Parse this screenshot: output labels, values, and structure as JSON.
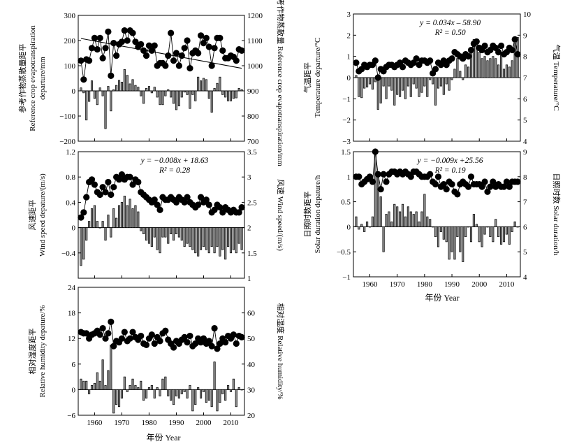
{
  "figure": {
    "xlabel": "年份 Year",
    "years": {
      "start": 1955,
      "end": 2014
    }
  },
  "chart_data": [
    {
      "id": "et0",
      "type": "bar+scatter",
      "ylabel_left": [
        "参考作物蒸散量距平",
        "Reference crop evapotranspiration",
        "departure/mm"
      ],
      "ylabel_right": "参考作物蒸散量 Reference crop evapotranspiration/mm",
      "ylim_left": [
        -200,
        300
      ],
      "ylim_right": [
        700,
        1200
      ],
      "yticks_left": [
        -200,
        -100,
        0,
        100,
        200,
        300
      ],
      "yticks_right": [
        700,
        800,
        900,
        1000,
        1100,
        1200
      ],
      "xticks": [
        1960,
        1970,
        1980,
        1990,
        2000,
        2010
      ],
      "show_xticklabels": false,
      "trend": null,
      "bars": [
        12,
        -8,
        -116,
        -42,
        40,
        -30,
        -55,
        12,
        -20,
        -150,
        18,
        -80,
        5,
        22,
        42,
        35,
        85,
        62,
        28,
        45,
        22,
        15,
        -20,
        -50,
        10,
        18,
        -8,
        15,
        -25,
        -55,
        -55,
        -20,
        5,
        -25,
        -50,
        -75,
        -60,
        -25,
        -5,
        -15,
        -70,
        -15,
        -40,
        55,
        40,
        50,
        45,
        -30,
        -85,
        10,
        30,
        55,
        -15,
        -25,
        -40,
        -40,
        -30,
        -28,
        10,
        5
      ],
      "points": [
        1020,
        945,
        1025,
        1020,
        1070,
        1110,
        1065,
        1110,
        1030,
        1070,
        1135,
        960,
        1090,
        1040,
        1085,
        1095,
        1140,
        1100,
        1140,
        1130,
        1095,
        1075,
        1085,
        1060,
        1040,
        1080,
        1060,
        1080,
        1000,
        1010,
        1010,
        1000,
        1040,
        1130,
        1020,
        1050,
        1000,
        1040,
        1070,
        1100,
        990,
        1050,
        1060,
        1050,
        1120,
        1090,
        1110,
        1075,
        1000,
        1070,
        1110,
        1110,
        1060,
        1030,
        1030,
        1040,
        1035,
        1020,
        1065,
        1060
      ]
    },
    {
      "id": "temp",
      "type": "bar+scatter",
      "ylabel_left": [
        "气温距平",
        "Temperature departure/°C"
      ],
      "ylabel_right": "气温 Temperature/°C",
      "ylim_left": [
        -3,
        3
      ],
      "ylim_right": [
        4,
        10
      ],
      "yticks_left": [
        -3,
        -2,
        -1,
        0,
        1,
        2,
        3
      ],
      "yticks_right": [
        4,
        5,
        6,
        7,
        8,
        9,
        10
      ],
      "xticks": [
        1960,
        1970,
        1980,
        1990,
        2000,
        2010
      ],
      "show_xticklabels": false,
      "trend": {
        "equation": "y = 0.034x – 58.90",
        "r2": "R² = 0.50",
        "slope": 0.034,
        "intercept": -58.9
      },
      "bars": [
        0.1,
        -0.9,
        -0.95,
        -0.5,
        -0.45,
        -0.3,
        -0.55,
        -0.2,
        -1.5,
        -1.2,
        -0.4,
        -1.0,
        -0.4,
        -0.6,
        -1.3,
        -0.8,
        -0.9,
        -0.6,
        -1.0,
        -0.4,
        -0.9,
        -0.3,
        -0.5,
        -0.9,
        -0.7,
        -0.4,
        -0.9,
        -0.1,
        -0.3,
        -1.3,
        -0.5,
        -0.4,
        -0.8,
        -0.3,
        -0.6,
        -0.1,
        0.4,
        0.9,
        0.3,
        -0.1,
        0.6,
        0.5,
        1.3,
        1.8,
        1.7,
        1.2,
        0.9,
        1.0,
        0.8,
        0.9,
        1.0,
        0.9,
        0.6,
        1.1,
        0.4,
        0.6,
        0.5,
        0.8,
        1.6,
        1.9
      ],
      "points": [
        7.7,
        7.3,
        7.4,
        7.6,
        7.5,
        7.6,
        7.6,
        7.8,
        7.0,
        7.4,
        7.3,
        7.5,
        7.6,
        7.6,
        7.5,
        7.6,
        7.7,
        7.5,
        7.8,
        7.7,
        7.6,
        7.7,
        7.9,
        7.6,
        7.8,
        7.8,
        7.7,
        7.8,
        7.2,
        7.4,
        7.7,
        7.6,
        7.8,
        7.6,
        7.8,
        7.9,
        8.2,
        8.1,
        8.0,
        7.9,
        8.1,
        8.0,
        8.3,
        8.6,
        8.7,
        8.4,
        8.3,
        8.5,
        8.2,
        8.3,
        8.5,
        8.4,
        8.2,
        8.5,
        8.1,
        8.2,
        8.4,
        8.3,
        8.8,
        8.1
      ]
    },
    {
      "id": "wind",
      "type": "bar+scatter",
      "ylabel_left": [
        "风速距平",
        "Wind speed depature/(m/s)"
      ],
      "ylabel_right": "风速 Wind speed/(m/s)",
      "ylim_left": [
        -0.8,
        1.2
      ],
      "ylim_right": [
        1.0,
        3.5
      ],
      "yticks_left": [
        -0.8,
        -0.4,
        0,
        0.4,
        0.8,
        1.2
      ],
      "yticks_left_labels": [
        "",
        "−0.4",
        "0",
        "0.4",
        "0.8",
        "1.2"
      ],
      "yticks_right": [
        1.0,
        1.5,
        2.0,
        2.5,
        3.0,
        3.5
      ],
      "xticks": [
        1960,
        1970,
        1980,
        1990,
        2000,
        2010
      ],
      "show_xticklabels": false,
      "trend": {
        "equation": "y = −0.008x + 18.63",
        "r2": "R² = 0.28",
        "slope": -0.008,
        "intercept": 18.63
      },
      "bars": [
        -0.6,
        -0.5,
        -0.2,
        0.1,
        0.3,
        0.35,
        0.1,
        0.0,
        0.1,
        -0.2,
        0.2,
        -0.15,
        0.3,
        0.15,
        0.35,
        0.4,
        0.5,
        0.35,
        0.45,
        0.3,
        0.35,
        0.25,
        -0.05,
        -0.1,
        -0.2,
        -0.25,
        -0.3,
        -0.15,
        -0.35,
        -0.4,
        -0.15,
        -0.15,
        -0.25,
        -0.1,
        -0.2,
        -0.1,
        -0.15,
        -0.2,
        -0.3,
        -0.25,
        -0.3,
        -0.35,
        -0.4,
        -0.45,
        -0.35,
        -0.3,
        -0.35,
        -0.4,
        -0.3,
        -0.4,
        -0.3,
        -0.45,
        -0.35,
        -0.5,
        -0.3,
        -0.4,
        -0.35,
        -0.4,
        -0.25,
        -0.35
      ],
      "points": [
        2.2,
        2.3,
        2.6,
        2.9,
        2.95,
        2.85,
        2.7,
        2.65,
        2.8,
        2.7,
        2.9,
        2.65,
        2.8,
        3.0,
        2.95,
        3.05,
        2.95,
        3.0,
        3.0,
        2.85,
        2.95,
        2.9,
        2.7,
        2.65,
        2.6,
        2.55,
        2.5,
        2.55,
        2.45,
        2.35,
        2.6,
        2.55,
        2.55,
        2.6,
        2.55,
        2.5,
        2.6,
        2.55,
        2.5,
        2.6,
        2.5,
        2.45,
        2.4,
        2.45,
        2.6,
        2.5,
        2.55,
        2.45,
        2.3,
        2.35,
        2.45,
        2.4,
        2.3,
        2.4,
        2.35,
        2.3,
        2.35,
        2.3,
        2.3,
        2.4
      ]
    },
    {
      "id": "sun",
      "type": "bar+scatter",
      "ylabel_left": [
        "日照时数距平",
        "Solar duration depature/h"
      ],
      "ylabel_right": "日照时数 Solar duration/h",
      "ylim_left": [
        -1.0,
        1.5
      ],
      "ylim_right": [
        4,
        9
      ],
      "yticks_left": [
        -1.0,
        -0.5,
        0,
        0.5,
        1.0,
        1.5
      ],
      "yticks_right": [
        4,
        5,
        6,
        7,
        8,
        9
      ],
      "xticks": [
        1960,
        1970,
        1980,
        1990,
        2000,
        2010
      ],
      "show_xticklabels": true,
      "trend": {
        "equation": "y = −0.009x +25.56",
        "r2": "R² = 0.19",
        "slope": -0.009,
        "intercept": 25.56
      },
      "bars": [
        0.2,
        -0.05,
        0.05,
        -0.1,
        0.1,
        0.0,
        0.2,
        1.5,
        1.1,
        0.6,
        -0.5,
        0.25,
        0.3,
        0.1,
        0.45,
        0.4,
        0.3,
        0.45,
        0.2,
        0.4,
        0.3,
        0.25,
        0.3,
        0.1,
        0.3,
        0.65,
        0.2,
        0.15,
        0.0,
        -0.2,
        -0.4,
        -0.1,
        -0.25,
        -0.3,
        -0.65,
        -0.5,
        -0.65,
        -0.2,
        -0.5,
        -0.7,
        -0.2,
        0.0,
        -0.3,
        0.25,
        0.05,
        -0.3,
        -0.4,
        -0.15,
        0.0,
        -0.2,
        -0.3,
        0.15,
        -0.2,
        -0.35,
        -0.3,
        -0.15,
        -0.35,
        -0.1,
        0.1,
        0.0
      ],
      "points": [
        8.0,
        8.0,
        7.7,
        7.8,
        7.9,
        8.0,
        7.8,
        9.0,
        8.1,
        7.5,
        8.1,
        7.8,
        8.1,
        8.2,
        8.2,
        8.1,
        8.2,
        8.1,
        8.2,
        8.1,
        8.0,
        8.2,
        8.2,
        8.1,
        8.0,
        8.0,
        8.0,
        8.1,
        7.8,
        7.7,
        8.0,
        7.6,
        7.7,
        7.5,
        7.8,
        7.7,
        7.4,
        7.3,
        7.7,
        7.8,
        7.7,
        7.6,
        8.0,
        7.7,
        7.7,
        7.7,
        7.6,
        7.8,
        7.4,
        7.6,
        7.8,
        7.6,
        7.7,
        7.6,
        7.6,
        7.8,
        7.6,
        7.8,
        7.8,
        7.8
      ]
    },
    {
      "id": "rh",
      "type": "bar+scatter",
      "ylabel_left": [
        "相对湿度距平",
        "Relative humidity depature/%"
      ],
      "ylabel_right": "相对湿度 Relative humidity/%",
      "ylim_left": [
        -6,
        24
      ],
      "ylim_right": [
        20,
        70
      ],
      "yticks_left": [
        -6,
        0,
        6,
        12,
        18,
        24
      ],
      "yticks_right": [
        20,
        30,
        40,
        50,
        60
      ],
      "xticks": [
        1960,
        1970,
        1980,
        1990,
        2000,
        2010
      ],
      "show_xticklabels": true,
      "trend": null,
      "bars": [
        2.5,
        2.0,
        2.0,
        -1.0,
        1.0,
        1.5,
        4.0,
        2.0,
        7.0,
        1.0,
        4.5,
        10.5,
        -5.5,
        -3.5,
        -4.0,
        -2.0,
        3.0,
        -0.5,
        1.0,
        2.5,
        1.0,
        0.5,
        2.0,
        -2.5,
        -2.0,
        0.5,
        1.0,
        -2.0,
        0.5,
        -1.5,
        2.5,
        3.0,
        -1.5,
        -2.5,
        -3.5,
        -1.5,
        -2.0,
        -1.0,
        -0.5,
        -2.0,
        1.0,
        -5.0,
        -3.5,
        0.5,
        -2.0,
        -0.5,
        -3.0,
        -2.5,
        -4.0,
        6.5,
        -5.0,
        -3.0,
        -1.0,
        -2.5,
        1.0,
        -0.5,
        2.5,
        -4.0,
        0.5,
        0.0
      ],
      "points": [
        52.5,
        52,
        52,
        50,
        51.5,
        52,
        53,
        51.5,
        54,
        50,
        52,
        56.5,
        47,
        49,
        48.5,
        50,
        52.5,
        49,
        50,
        52.5,
        50.5,
        49.5,
        51,
        48,
        47.5,
        50,
        51.5,
        48,
        50.5,
        49,
        52,
        53,
        49.5,
        48,
        46.5,
        49,
        48,
        49.5,
        50.5,
        48.5,
        51,
        47,
        48,
        50,
        48.5,
        50,
        48,
        49,
        47,
        54,
        46,
        48,
        50,
        48.5,
        51,
        50,
        51.5,
        48,
        51,
        50.5
      ]
    }
  ]
}
